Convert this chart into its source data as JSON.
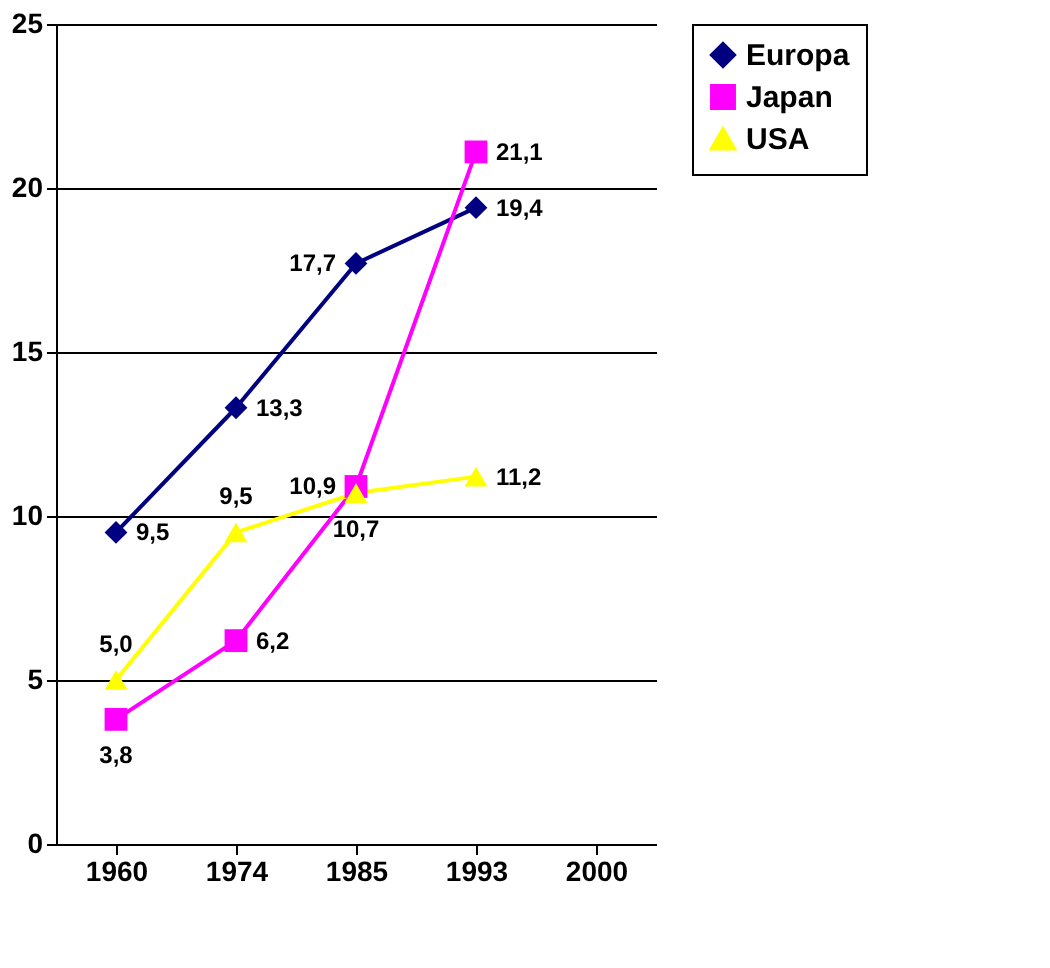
{
  "chart_data": {
    "type": "line",
    "categories": [
      "1960",
      "1974",
      "1985",
      "1993",
      "2000"
    ],
    "series": [
      {
        "name": "Europa",
        "color": "#000080",
        "marker": "diamond",
        "values": [
          9.5,
          13.3,
          17.7,
          19.4,
          null
        ],
        "value_labels": [
          "9,5",
          "13,3",
          "17,7",
          "19,4",
          null
        ]
      },
      {
        "name": "Japan",
        "color": "#ff00ff",
        "marker": "square",
        "values": [
          3.8,
          6.2,
          10.9,
          21.1,
          null
        ],
        "value_labels": [
          "3,8",
          "6,2",
          "10,9",
          "21,1",
          null
        ]
      },
      {
        "name": "USA",
        "color": "#ffff00",
        "marker": "triangle",
        "values": [
          5.0,
          9.5,
          10.7,
          11.2,
          null
        ],
        "value_labels": [
          "5,0",
          "9,5",
          "10,7",
          "11,2",
          null
        ]
      }
    ],
    "ylim": [
      0,
      25
    ],
    "yticks": [
      0,
      5,
      10,
      15,
      20,
      25
    ],
    "grid": "y",
    "legend": "right"
  }
}
